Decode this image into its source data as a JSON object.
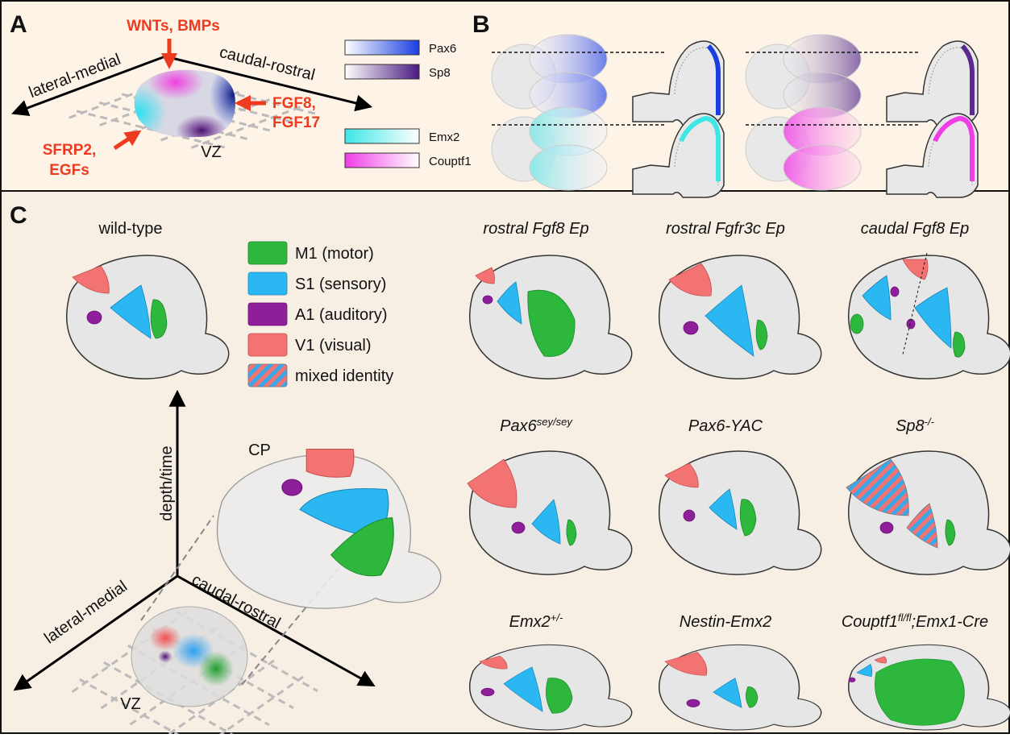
{
  "panel_a": {
    "label": "A",
    "signals_top": "WNTs, BMPs",
    "axis_left": "lateral-medial",
    "axis_right": "caudal-rostral",
    "signals_right": [
      "FGF8,",
      "FGF17"
    ],
    "signals_left": [
      "SFRP2,",
      "EGFs"
    ],
    "zone": "VZ",
    "genes": [
      "Pax6",
      "Sp8",
      "Emx2",
      "Couptf1"
    ]
  },
  "panel_b": {
    "label": "B"
  },
  "panel_c": {
    "label": "C",
    "wild_type": "wild-type",
    "legend": [
      "M1 (motor)",
      "S1 (sensory)",
      "A1 (auditory)",
      "V1 (visual)",
      "mixed identity"
    ],
    "axis_vertical": "depth/time",
    "plate": "CP",
    "axis_left": "lateral-medial",
    "axis_right": "caudal-rostral",
    "zone": "VZ",
    "mutants": [
      {
        "parts": [
          {
            "text": "rostral Fgf8 Ep"
          }
        ]
      },
      {
        "parts": [
          {
            "text": "rostral Fgfr3c Ep"
          }
        ]
      },
      {
        "parts": [
          {
            "text": "caudal Fgf8 Ep"
          }
        ]
      },
      {
        "parts": [
          {
            "text": "Pax6"
          },
          {
            "text": "sey/sey",
            "sup": true
          }
        ]
      },
      {
        "parts": [
          {
            "text": "Pax6-YAC"
          }
        ]
      },
      {
        "parts": [
          {
            "text": "Sp8"
          },
          {
            "text": "-/-",
            "sup": true
          }
        ]
      },
      {
        "parts": [
          {
            "text": "Emx2"
          },
          {
            "text": "+/-",
            "sup": true
          }
        ]
      },
      {
        "parts": [
          {
            "text": "Nestin-Emx2"
          }
        ]
      },
      {
        "parts": [
          {
            "text": "Couptf1"
          },
          {
            "text": "fl/fl",
            "sup": true
          },
          {
            "text": ";Emx1-Cre"
          }
        ]
      }
    ]
  }
}
